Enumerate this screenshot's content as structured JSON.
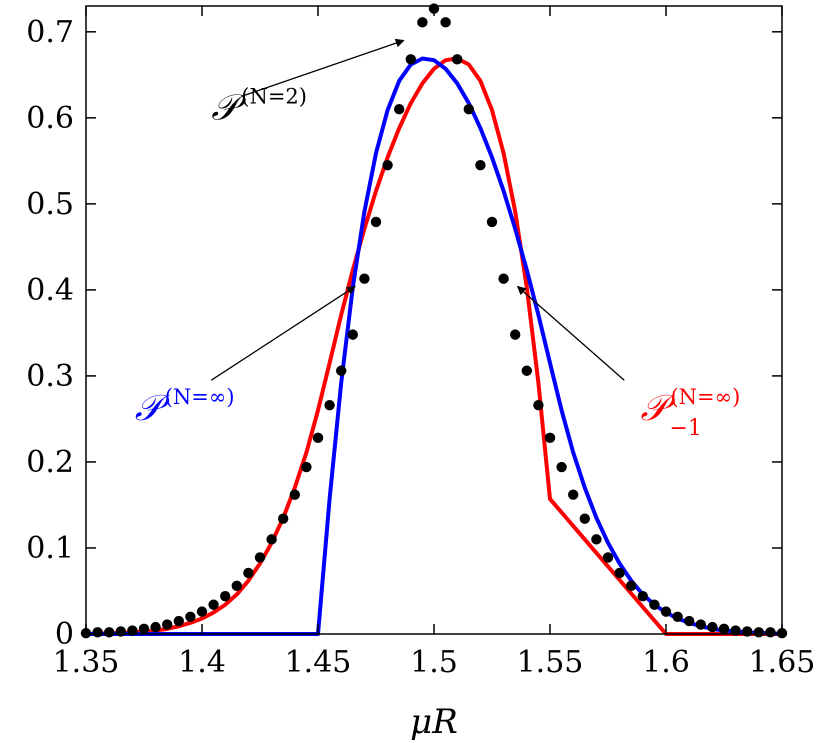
{
  "chart_data": {
    "type": "line",
    "title": "",
    "xlabel": "μR",
    "ylabel": "",
    "xlim": [
      1.35,
      1.65
    ],
    "ylim": [
      0,
      0.73
    ],
    "grid": false,
    "x_ticks": [
      1.35,
      1.4,
      1.45,
      1.5,
      1.55,
      1.6,
      1.65
    ],
    "x_tick_labels": [
      "1.35",
      "1.4",
      "1.45",
      "1.5",
      "1.55",
      "1.6",
      "1.65"
    ],
    "y_ticks": [
      0,
      0.1,
      0.2,
      0.3,
      0.4,
      0.5,
      0.6,
      0.7
    ],
    "y_tick_labels": [
      "0",
      "0.1",
      "0.2",
      "0.3",
      "0.4",
      "0.5",
      "0.6",
      "0.7"
    ],
    "series": [
      {
        "label_main": "𝒫",
        "label_sup": "(N=2)",
        "label_sub": "",
        "style": "dots",
        "color": "#000000",
        "x": [
          1.35,
          1.355,
          1.36,
          1.365,
          1.37,
          1.375,
          1.38,
          1.385,
          1.39,
          1.395,
          1.4,
          1.405,
          1.41,
          1.415,
          1.42,
          1.425,
          1.43,
          1.435,
          1.44,
          1.445,
          1.45,
          1.455,
          1.46,
          1.465,
          1.47,
          1.475,
          1.48,
          1.485,
          1.49,
          1.495,
          1.5,
          1.505,
          1.51,
          1.515,
          1.52,
          1.525,
          1.53,
          1.535,
          1.54,
          1.545,
          1.55,
          1.555,
          1.56,
          1.565,
          1.57,
          1.575,
          1.58,
          1.585,
          1.59,
          1.595,
          1.6,
          1.605,
          1.61,
          1.615,
          1.62,
          1.625,
          1.63,
          1.635,
          1.64,
          1.645,
          1.65
        ],
        "y": [
          0.001,
          0.002,
          0.002,
          0.003,
          0.004,
          0.006,
          0.008,
          0.011,
          0.015,
          0.02,
          0.026,
          0.034,
          0.044,
          0.056,
          0.071,
          0.089,
          0.11,
          0.134,
          0.162,
          0.194,
          0.228,
          0.266,
          0.306,
          0.348,
          0.413,
          0.479,
          0.545,
          0.61,
          0.668,
          0.711,
          0.727,
          0.711,
          0.668,
          0.61,
          0.545,
          0.479,
          0.413,
          0.348,
          0.306,
          0.266,
          0.228,
          0.194,
          0.162,
          0.134,
          0.11,
          0.089,
          0.071,
          0.056,
          0.044,
          0.034,
          0.026,
          0.02,
          0.015,
          0.011,
          0.008,
          0.006,
          0.004,
          0.003,
          0.002,
          0.002,
          0.001
        ]
      },
      {
        "label_main": "𝒫",
        "label_sup": "(N=∞)",
        "label_sub": "",
        "style": "line",
        "color": "#0000ff",
        "x": [
          1.35,
          1.4,
          1.45,
          1.455,
          1.46,
          1.465,
          1.47,
          1.475,
          1.48,
          1.485,
          1.49,
          1.495,
          1.5,
          1.505,
          1.51,
          1.515,
          1.52,
          1.525,
          1.53,
          1.535,
          1.54,
          1.545,
          1.55,
          1.555,
          1.56,
          1.565,
          1.57,
          1.575,
          1.58,
          1.585,
          1.59,
          1.595,
          1.6,
          1.605,
          1.61,
          1.615,
          1.62,
          1.625,
          1.63,
          1.635,
          1.64,
          1.645,
          1.65
        ],
        "y": [
          0,
          0,
          0,
          0.157,
          0.292,
          0.403,
          0.491,
          0.559,
          0.609,
          0.643,
          0.662,
          0.669,
          0.667,
          0.657,
          0.64,
          0.617,
          0.588,
          0.554,
          0.515,
          0.471,
          0.423,
          0.371,
          0.315,
          0.26,
          0.211,
          0.17,
          0.135,
          0.106,
          0.082,
          0.062,
          0.046,
          0.034,
          0.025,
          0.018,
          0.013,
          0.009,
          0.006,
          0.004,
          0.003,
          0.002,
          0.001,
          0.001,
          0
        ]
      },
      {
        "label_main": "𝒫",
        "label_sup": "(N=∞)",
        "label_sub": "−1",
        "style": "line",
        "color": "#ff0000",
        "x": [
          1.35,
          1.355,
          1.36,
          1.365,
          1.37,
          1.375,
          1.38,
          1.385,
          1.39,
          1.395,
          1.4,
          1.405,
          1.41,
          1.415,
          1.42,
          1.425,
          1.43,
          1.435,
          1.44,
          1.445,
          1.45,
          1.455,
          1.46,
          1.465,
          1.47,
          1.475,
          1.48,
          1.485,
          1.49,
          1.495,
          1.5,
          1.505,
          1.51,
          1.515,
          1.52,
          1.525,
          1.53,
          1.535,
          1.54,
          1.545,
          1.55,
          1.6,
          1.65
        ],
        "y": [
          0,
          0,
          0.001,
          0.001,
          0.002,
          0.003,
          0.004,
          0.006,
          0.009,
          0.013,
          0.018,
          0.025,
          0.034,
          0.046,
          0.062,
          0.082,
          0.106,
          0.135,
          0.17,
          0.211,
          0.26,
          0.315,
          0.371,
          0.423,
          0.471,
          0.515,
          0.554,
          0.588,
          0.617,
          0.64,
          0.657,
          0.667,
          0.669,
          0.662,
          0.643,
          0.609,
          0.559,
          0.491,
          0.403,
          0.292,
          0.157,
          0,
          0
        ]
      }
    ],
    "annotations": [
      {
        "series_index": 0,
        "text_x": 1.404,
        "text_y": 0.598,
        "arrow_from": [
          1.417,
          0.625
        ],
        "arrow_to": [
          1.487,
          0.69
        ]
      },
      {
        "series_index": 1,
        "text_x": 1.371,
        "text_y": 0.249,
        "arrow_from": [
          1.404,
          0.295
        ],
        "arrow_to": [
          1.466,
          0.404
        ]
      },
      {
        "series_index": 2,
        "text_x": 1.589,
        "text_y": 0.249,
        "arrow_from": [
          1.582,
          0.295
        ],
        "arrow_to": [
          1.536,
          0.404
        ]
      }
    ]
  }
}
